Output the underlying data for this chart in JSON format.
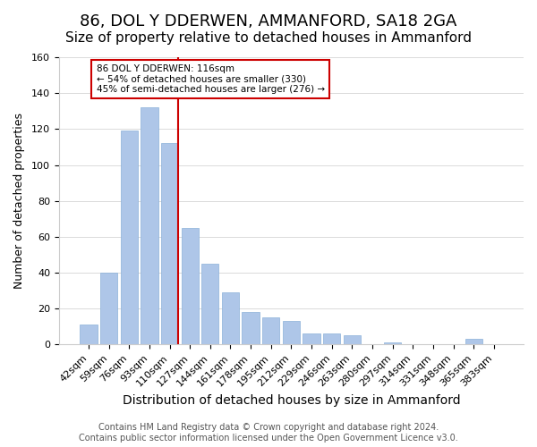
{
  "title": "86, DOL Y DDERWEN, AMMANFORD, SA18 2GA",
  "subtitle": "Size of property relative to detached houses in Ammanford",
  "xlabel": "Distribution of detached houses by size in Ammanford",
  "ylabel": "Number of detached properties",
  "bar_labels": [
    "42sqm",
    "59sqm",
    "76sqm",
    "93sqm",
    "110sqm",
    "127sqm",
    "144sqm",
    "161sqm",
    "178sqm",
    "195sqm",
    "212sqm",
    "229sqm",
    "246sqm",
    "263sqm",
    "280sqm",
    "297sqm",
    "314sqm",
    "331sqm",
    "348sqm",
    "365sqm",
    "383sqm"
  ],
  "bar_values": [
    11,
    40,
    119,
    132,
    112,
    65,
    45,
    29,
    18,
    15,
    13,
    6,
    6,
    5,
    0,
    1,
    0,
    0,
    0,
    3,
    0
  ],
  "bar_color": "#aec6e8",
  "vline_color": "#cc0000",
  "annotation_text": "86 DOL Y DDERWEN: 116sqm\n← 54% of detached houses are smaller (330)\n45% of semi-detached houses are larger (276) →",
  "annotation_box_facecolor": "#ffffff",
  "annotation_box_edgecolor": "#cc0000",
  "ylim": [
    0,
    160
  ],
  "yticks": [
    0,
    20,
    40,
    60,
    80,
    100,
    120,
    140,
    160
  ],
  "footer": "Contains HM Land Registry data © Crown copyright and database right 2024.\nContains public sector information licensed under the Open Government Licence v3.0.",
  "title_fontsize": 13,
  "subtitle_fontsize": 11,
  "xlabel_fontsize": 10,
  "ylabel_fontsize": 9,
  "tick_fontsize": 8,
  "footer_fontsize": 7,
  "vline_bar_index": 4
}
